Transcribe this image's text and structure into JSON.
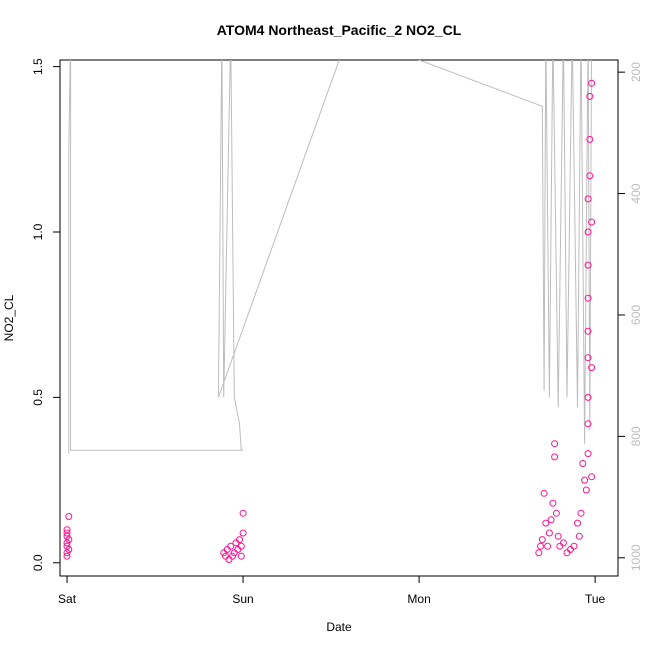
{
  "chart_data": {
    "type": "scatter",
    "title": "ATOM4 Northeast_Pacific_2 NO2_CL",
    "xlabel": "Date",
    "ylabel": "NO2_CL",
    "x_ticks": [
      "Sat",
      "Sun",
      "Mon",
      "Tue"
    ],
    "x_range_days": [
      -0.04,
      3.13
    ],
    "ylim": [
      -0.04,
      1.52
    ],
    "y_ticks": [
      "0.0",
      "0.5",
      "1.0",
      "1.5"
    ],
    "y_tick_values": [
      0.0,
      0.5,
      1.0,
      1.5
    ],
    "right_axis": {
      "label": "",
      "ticks": [
        "200",
        "400",
        "600",
        "800",
        "1000"
      ],
      "tick_values": [
        200,
        400,
        600,
        800,
        1000
      ],
      "range": [
        1030,
        180
      ],
      "color": "#bdbdbd"
    },
    "marker": "open-circle",
    "point_color": "#ff1493",
    "line_color": "#bdbdbd",
    "series": [
      {
        "values": [
          [
            0.0,
            0.05
          ],
          [
            0.0,
            0.03
          ],
          [
            0.0,
            0.06
          ],
          [
            0.0,
            0.02
          ],
          [
            0.0,
            0.08
          ],
          [
            0.0,
            0.1
          ],
          [
            0.01,
            0.14
          ],
          [
            0.01,
            0.04
          ],
          [
            0.01,
            0.07
          ],
          [
            0.0,
            0.09
          ],
          [
            0.89,
            0.03
          ],
          [
            0.9,
            0.02
          ],
          [
            0.91,
            0.04
          ],
          [
            0.92,
            0.01
          ],
          [
            0.93,
            0.05
          ],
          [
            0.94,
            0.02
          ],
          [
            0.95,
            0.03
          ],
          [
            0.96,
            0.06
          ],
          [
            0.97,
            0.04
          ],
          [
            0.98,
            0.07
          ],
          [
            0.99,
            0.05
          ],
          [
            1.0,
            0.09
          ],
          [
            1.0,
            0.15
          ],
          [
            0.99,
            0.02
          ],
          [
            2.68,
            0.03
          ],
          [
            2.69,
            0.05
          ],
          [
            2.7,
            0.07
          ],
          [
            2.71,
            0.21
          ],
          [
            2.72,
            0.12
          ],
          [
            2.73,
            0.05
          ],
          [
            2.74,
            0.09
          ],
          [
            2.75,
            0.13
          ],
          [
            2.76,
            0.18
          ],
          [
            2.77,
            0.36
          ],
          [
            2.77,
            0.32
          ],
          [
            2.78,
            0.15
          ],
          [
            2.79,
            0.08
          ],
          [
            2.8,
            0.05
          ],
          [
            2.82,
            0.06
          ],
          [
            2.84,
            0.03
          ],
          [
            2.86,
            0.04
          ],
          [
            2.88,
            0.05
          ],
          [
            2.9,
            0.12
          ],
          [
            2.91,
            0.08
          ],
          [
            2.92,
            0.15
          ],
          [
            2.93,
            0.3
          ],
          [
            2.94,
            0.25
          ],
          [
            2.95,
            0.22
          ],
          [
            2.96,
            0.33
          ],
          [
            2.96,
            0.42
          ],
          [
            2.96,
            0.5
          ],
          [
            2.96,
            0.62
          ],
          [
            2.96,
            0.7
          ],
          [
            2.96,
            0.8
          ],
          [
            2.96,
            0.9
          ],
          [
            2.96,
            1.0
          ],
          [
            2.96,
            1.1
          ],
          [
            2.97,
            1.17
          ],
          [
            2.97,
            1.28
          ],
          [
            2.97,
            1.41
          ],
          [
            2.98,
            1.45
          ],
          [
            2.98,
            1.03
          ],
          [
            2.98,
            0.59
          ],
          [
            2.98,
            0.26
          ]
        ]
      }
    ]
  }
}
